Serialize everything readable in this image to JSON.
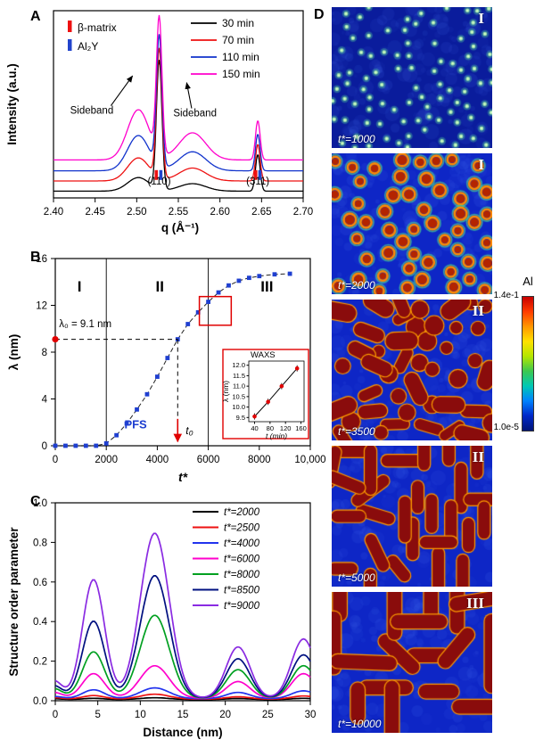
{
  "figure": {
    "panels": {
      "a": "A",
      "b": "B",
      "c": "C",
      "d": "D"
    }
  },
  "chart_data": [
    {
      "id": "panelA",
      "type": "line",
      "xlabel": "q (Å⁻¹)",
      "ylabel": "Intensity (a.u.)",
      "xlim": [
        2.4,
        2.7
      ],
      "ylim": [
        0,
        1.38
      ],
      "xticks": [
        "2.40",
        "2.45",
        "2.50",
        "2.55",
        "2.60",
        "2.65",
        "2.70"
      ],
      "legend_position": "top-right",
      "series": [
        {
          "label": "30 min",
          "color": "#000000",
          "offset": 0.0,
          "main": 0.95,
          "p311": 0.27,
          "sb1": 0.1,
          "sb2": 0.055
        },
        {
          "label": "70 min",
          "color": "#ee1111",
          "offset": 0.075,
          "main": 0.95,
          "p311": 0.27,
          "sb1": 0.17,
          "sb2": 0.095
        },
        {
          "label": "110 min",
          "color": "#1133cc",
          "offset": 0.15,
          "main": 0.96,
          "p311": 0.27,
          "sb1": 0.26,
          "sb2": 0.14
        },
        {
          "label": "150 min",
          "color": "#ff00cc",
          "offset": 0.23,
          "main": 1.0,
          "p311": 0.29,
          "sb1": 0.37,
          "sb2": 0.2
        }
      ],
      "profile": {
        "background": 0.05,
        "main_center": 2.527,
        "main_sigma": 0.0033,
        "p311_center": 2.6455,
        "p311_sigma": 0.0028,
        "sb1_center": 2.502,
        "sb1_sigma": 0.013,
        "sb2_center": 2.567,
        "sb2_sigma": 0.016
      },
      "phase_markers": [
        {
          "label": "β-matrix",
          "color": "#ee1111"
        },
        {
          "label": "Al₂Y",
          "color": "#2244cc"
        }
      ],
      "plot_ticks": [
        {
          "x": 2.5235,
          "color": "#ee1111"
        },
        {
          "x": 2.529,
          "color": "#2244cc"
        },
        {
          "x": 2.643,
          "color": "#ee1111"
        },
        {
          "x": 2.648,
          "color": "#2244cc"
        }
      ],
      "peak_labels": [
        {
          "text": "(110)",
          "x": 2.527,
          "y": 0.1
        },
        {
          "text": "(311)",
          "x": 2.6455,
          "y": 0.1
        }
      ],
      "annotations": [
        {
          "text": "Sideband",
          "x": 2.446,
          "y": 0.62,
          "arrow": {
            "x1": 2.469,
            "y1": 0.68,
            "x2": 2.495,
            "y2": 0.9
          }
        },
        {
          "text": "Sideband",
          "x": 2.57,
          "y": 0.6,
          "arrow": {
            "x1": 2.566,
            "y1": 0.66,
            "x2": 2.56,
            "y2": 0.85
          }
        }
      ]
    },
    {
      "id": "panelB",
      "type": "scatter-line",
      "xlabel": "t*",
      "ylabel": "λ (nm)",
      "xlim": [
        0,
        10000
      ],
      "ylim": [
        0,
        16
      ],
      "xtick_values": [
        0,
        2000,
        4000,
        6000,
        8000,
        10000
      ],
      "xtick_labels": [
        "0",
        "2000",
        "4000",
        "6000",
        "8000",
        "10,000"
      ],
      "ytick_values": [
        0,
        4,
        8,
        12,
        16
      ],
      "point_color": "#1f3fd0",
      "points": {
        "x": [
          0,
          400,
          800,
          1200,
          1600,
          2000,
          2400,
          2800,
          3200,
          3600,
          4000,
          4400,
          4800,
          5200,
          5600,
          6000,
          6400,
          6800,
          7200,
          7600,
          8000,
          8600,
          9200
        ],
        "y": [
          0,
          0,
          0,
          0,
          0,
          0.2,
          0.9,
          1.9,
          3.1,
          4.4,
          5.9,
          7.5,
          9.1,
          10.4,
          11.4,
          12.3,
          13.1,
          13.7,
          14.1,
          14.35,
          14.5,
          14.65,
          14.7
        ]
      },
      "region_lines": [
        2000,
        6000
      ],
      "region_labels": [
        {
          "text": "I",
          "x": 950,
          "y": 13.2
        },
        {
          "text": "II",
          "x": 4100,
          "y": 13.2
        },
        {
          "text": "III",
          "x": 8300,
          "y": 13.2
        }
      ],
      "lambda0": {
        "label": "λ₀ = 9.1 nm",
        "y": 9.1,
        "t0": 4800,
        "t0_label": "t₀"
      },
      "method_label": {
        "text": "PFS",
        "x": 3150,
        "y": 1.5,
        "color": "#1f3fd0"
      },
      "highlight_box": {
        "x1": 5650,
        "y1": 10.3,
        "x2": 6900,
        "y2": 12.75
      },
      "inset": {
        "title": "WAXS",
        "xlabel": "t (min)",
        "ylabel": "λ (nm)",
        "xlim": [
          25,
          168
        ],
        "ylim": [
          9.3,
          12.2
        ],
        "xticks": [
          40,
          80,
          120,
          160
        ],
        "ytick_values": [
          9.5,
          10.0,
          10.5,
          11.0,
          11.5,
          12.0
        ],
        "yticks": [
          "9.5",
          "10.0",
          "10.5",
          "11.0",
          "11.5",
          "12.0"
        ],
        "x": [
          40,
          75,
          110,
          150
        ],
        "y": [
          9.55,
          10.25,
          11.0,
          11.85
        ],
        "yerr": 0.15
      }
    },
    {
      "id": "panelC",
      "type": "line",
      "xlabel": "Distance (nm)",
      "ylabel": "Structure order parameter",
      "xlim": [
        0,
        30
      ],
      "ylim": [
        0,
        1.0
      ],
      "xticks": [
        0,
        5,
        10,
        15,
        20,
        25,
        30
      ],
      "ytick_values": [
        0,
        0.2,
        0.4,
        0.6,
        0.8,
        1.0
      ],
      "yticks": [
        "0.0",
        "0.2",
        "0.4",
        "0.6",
        "0.8",
        "1.0"
      ],
      "peak_centers": [
        -0.2,
        4.5,
        11.7,
        21.5,
        29.2
      ],
      "peak_sigmas": [
        1.0,
        1.3,
        1.7,
        1.4,
        1.4
      ],
      "series": [
        {
          "label": "t*=2000",
          "color": "#000000",
          "baseline": 0.006,
          "amps": [
            0.004,
            0.006,
            0.009,
            0.005,
            0.006
          ]
        },
        {
          "label": "t*=2500",
          "color": "#ee1111",
          "baseline": 0.008,
          "amps": [
            0.008,
            0.018,
            0.025,
            0.012,
            0.016
          ]
        },
        {
          "label": "t*=4000",
          "color": "#2233ee",
          "baseline": 0.01,
          "amps": [
            0.012,
            0.045,
            0.055,
            0.032,
            0.04
          ]
        },
        {
          "label": "t*=6000",
          "color": "#ff00cc",
          "baseline": 0.012,
          "amps": [
            0.03,
            0.125,
            0.165,
            0.085,
            0.125
          ]
        },
        {
          "label": "t*=8000",
          "color": "#00a020",
          "baseline": 0.012,
          "amps": [
            0.05,
            0.235,
            0.42,
            0.145,
            0.165
          ]
        },
        {
          "label": "t*=8500",
          "color": "#001080",
          "baseline": 0.012,
          "amps": [
            0.065,
            0.39,
            0.62,
            0.2,
            0.22
          ]
        },
        {
          "label": "t*=9000",
          "color": "#8a2be2",
          "baseline": 0.012,
          "amps": [
            0.09,
            0.6,
            0.835,
            0.26,
            0.3
          ]
        }
      ]
    }
  ],
  "micrographs": {
    "items": [
      {
        "roman": "I",
        "time_label": "t*=1000",
        "pattern": "dots",
        "seed": 11
      },
      {
        "roman": "I",
        "time_label": "t*=2000",
        "pattern": "rings",
        "seed": 22
      },
      {
        "roman": "II",
        "time_label": "t*=3500",
        "pattern": "blobs",
        "seed": 33
      },
      {
        "roman": "II",
        "time_label": "t*=5000",
        "pattern": "rods",
        "seed": 44
      },
      {
        "roman": "III",
        "time_label": "t*=10000",
        "pattern": "long-rods",
        "seed": 55
      }
    ]
  },
  "colorbar": {
    "title": "Al",
    "top_label": "1.4e-1",
    "bottom_label": "1.0e-5",
    "colors": [
      "#c80000",
      "#ff3c00",
      "#ff9600",
      "#ffe100",
      "#b4e600",
      "#3cc850",
      "#00c8b4",
      "#0082ff",
      "#0028c8",
      "#001478"
    ]
  }
}
